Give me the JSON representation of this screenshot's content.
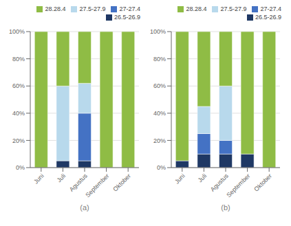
{
  "chart_data": [
    {
      "type": "bar",
      "stacked": true,
      "x_label": "(a)",
      "categories": [
        "Juni",
        "Juli",
        "Agustus",
        "September",
        "Oktober"
      ],
      "series": [
        {
          "name": "26.5-26.9",
          "color": "#1f3864",
          "values": [
            0,
            5,
            5,
            0,
            0
          ]
        },
        {
          "name": "27-27.4",
          "color": "#4472c4",
          "values": [
            0,
            0,
            35,
            0,
            0
          ]
        },
        {
          "name": "27.5-27.9",
          "color": "#b8d9ec",
          "values": [
            0,
            55,
            22,
            0,
            0
          ]
        },
        {
          "name": "28.28.4",
          "color": "#8fbc45",
          "values": [
            100,
            40,
            38,
            100,
            100
          ]
        }
      ],
      "ylim": [
        0,
        100
      ],
      "yticks": [
        {
          "value": 0,
          "label": "0%"
        },
        {
          "value": 20,
          "label": "20%"
        },
        {
          "value": 40,
          "label": "40%"
        },
        {
          "value": 60,
          "label": "60%"
        },
        {
          "value": 80,
          "label": "80%"
        },
        {
          "value": 100,
          "label": "100%"
        }
      ],
      "grid": true,
      "legend": "upper right"
    },
    {
      "type": "bar",
      "stacked": true,
      "x_label": "(b)",
      "categories": [
        "Juni",
        "Juli",
        "Agustus",
        "September",
        "Oktober"
      ],
      "series": [
        {
          "name": "26.5-26.9",
          "color": "#1f3864",
          "values": [
            5,
            10,
            10,
            10,
            0
          ]
        },
        {
          "name": "27-27.4",
          "color": "#4472c4",
          "values": [
            0,
            15,
            10,
            0,
            0
          ]
        },
        {
          "name": "27.5-27.9",
          "color": "#b8d9ec",
          "values": [
            0,
            20,
            40,
            0,
            0
          ]
        },
        {
          "name": "28.28.4",
          "color": "#8fbc45",
          "values": [
            95,
            55,
            40,
            90,
            100
          ]
        }
      ],
      "ylim": [
        0,
        100
      ],
      "yticks": [
        {
          "value": 0,
          "label": "0%"
        },
        {
          "value": 20,
          "label": "20%"
        },
        {
          "value": 40,
          "label": "40%"
        },
        {
          "value": 60,
          "label": "60%"
        },
        {
          "value": 80,
          "label": "80%"
        },
        {
          "value": 100,
          "label": "100%"
        }
      ],
      "grid": true,
      "legend": "upper right"
    }
  ]
}
